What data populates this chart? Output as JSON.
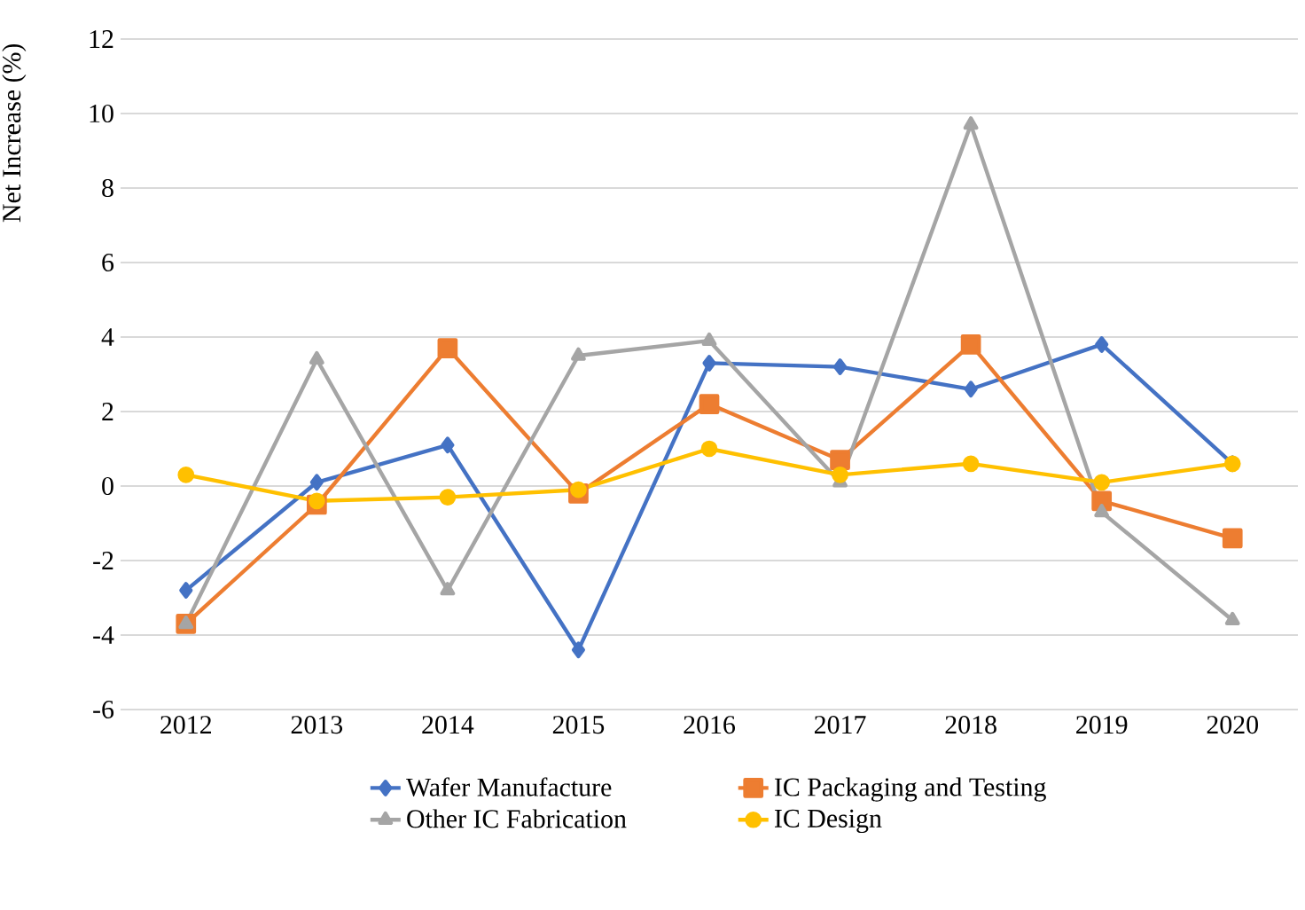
{
  "chart_data": {
    "type": "line",
    "ylabel": "Net Increase (%)",
    "categories": [
      "2012",
      "2013",
      "2014",
      "2015",
      "2016",
      "2017",
      "2018",
      "2019",
      "2020"
    ],
    "series": [
      {
        "name": "Wafer Manufacture",
        "color": "#4472c4",
        "marker": "diamond",
        "values": [
          -2.8,
          0.1,
          1.1,
          -4.4,
          3.3,
          3.2,
          2.6,
          3.8,
          0.6
        ]
      },
      {
        "name": "IC Packaging and Testing",
        "color": "#ed7d31",
        "marker": "square",
        "values": [
          -3.7,
          -0.5,
          3.7,
          -0.2,
          2.2,
          0.7,
          3.8,
          -0.4,
          -1.4
        ]
      },
      {
        "name": "Other IC Fabrication",
        "color": "#a5a5a5",
        "marker": "triangle",
        "values": [
          -3.7,
          3.4,
          -2.8,
          3.5,
          3.9,
          0.1,
          9.7,
          -0.7,
          -3.6
        ]
      },
      {
        "name": "IC Design",
        "color": "#ffc000",
        "marker": "circle",
        "values": [
          0.3,
          -0.4,
          -0.3,
          -0.1,
          1.0,
          0.3,
          0.6,
          0.1,
          0.6
        ]
      }
    ],
    "ylim": [
      -6,
      12
    ],
    "yticks": [
      -6,
      -4,
      -2,
      0,
      2,
      4,
      6,
      8,
      10,
      12
    ],
    "grid": "y",
    "legend": "bottom",
    "line_style": "solid"
  }
}
